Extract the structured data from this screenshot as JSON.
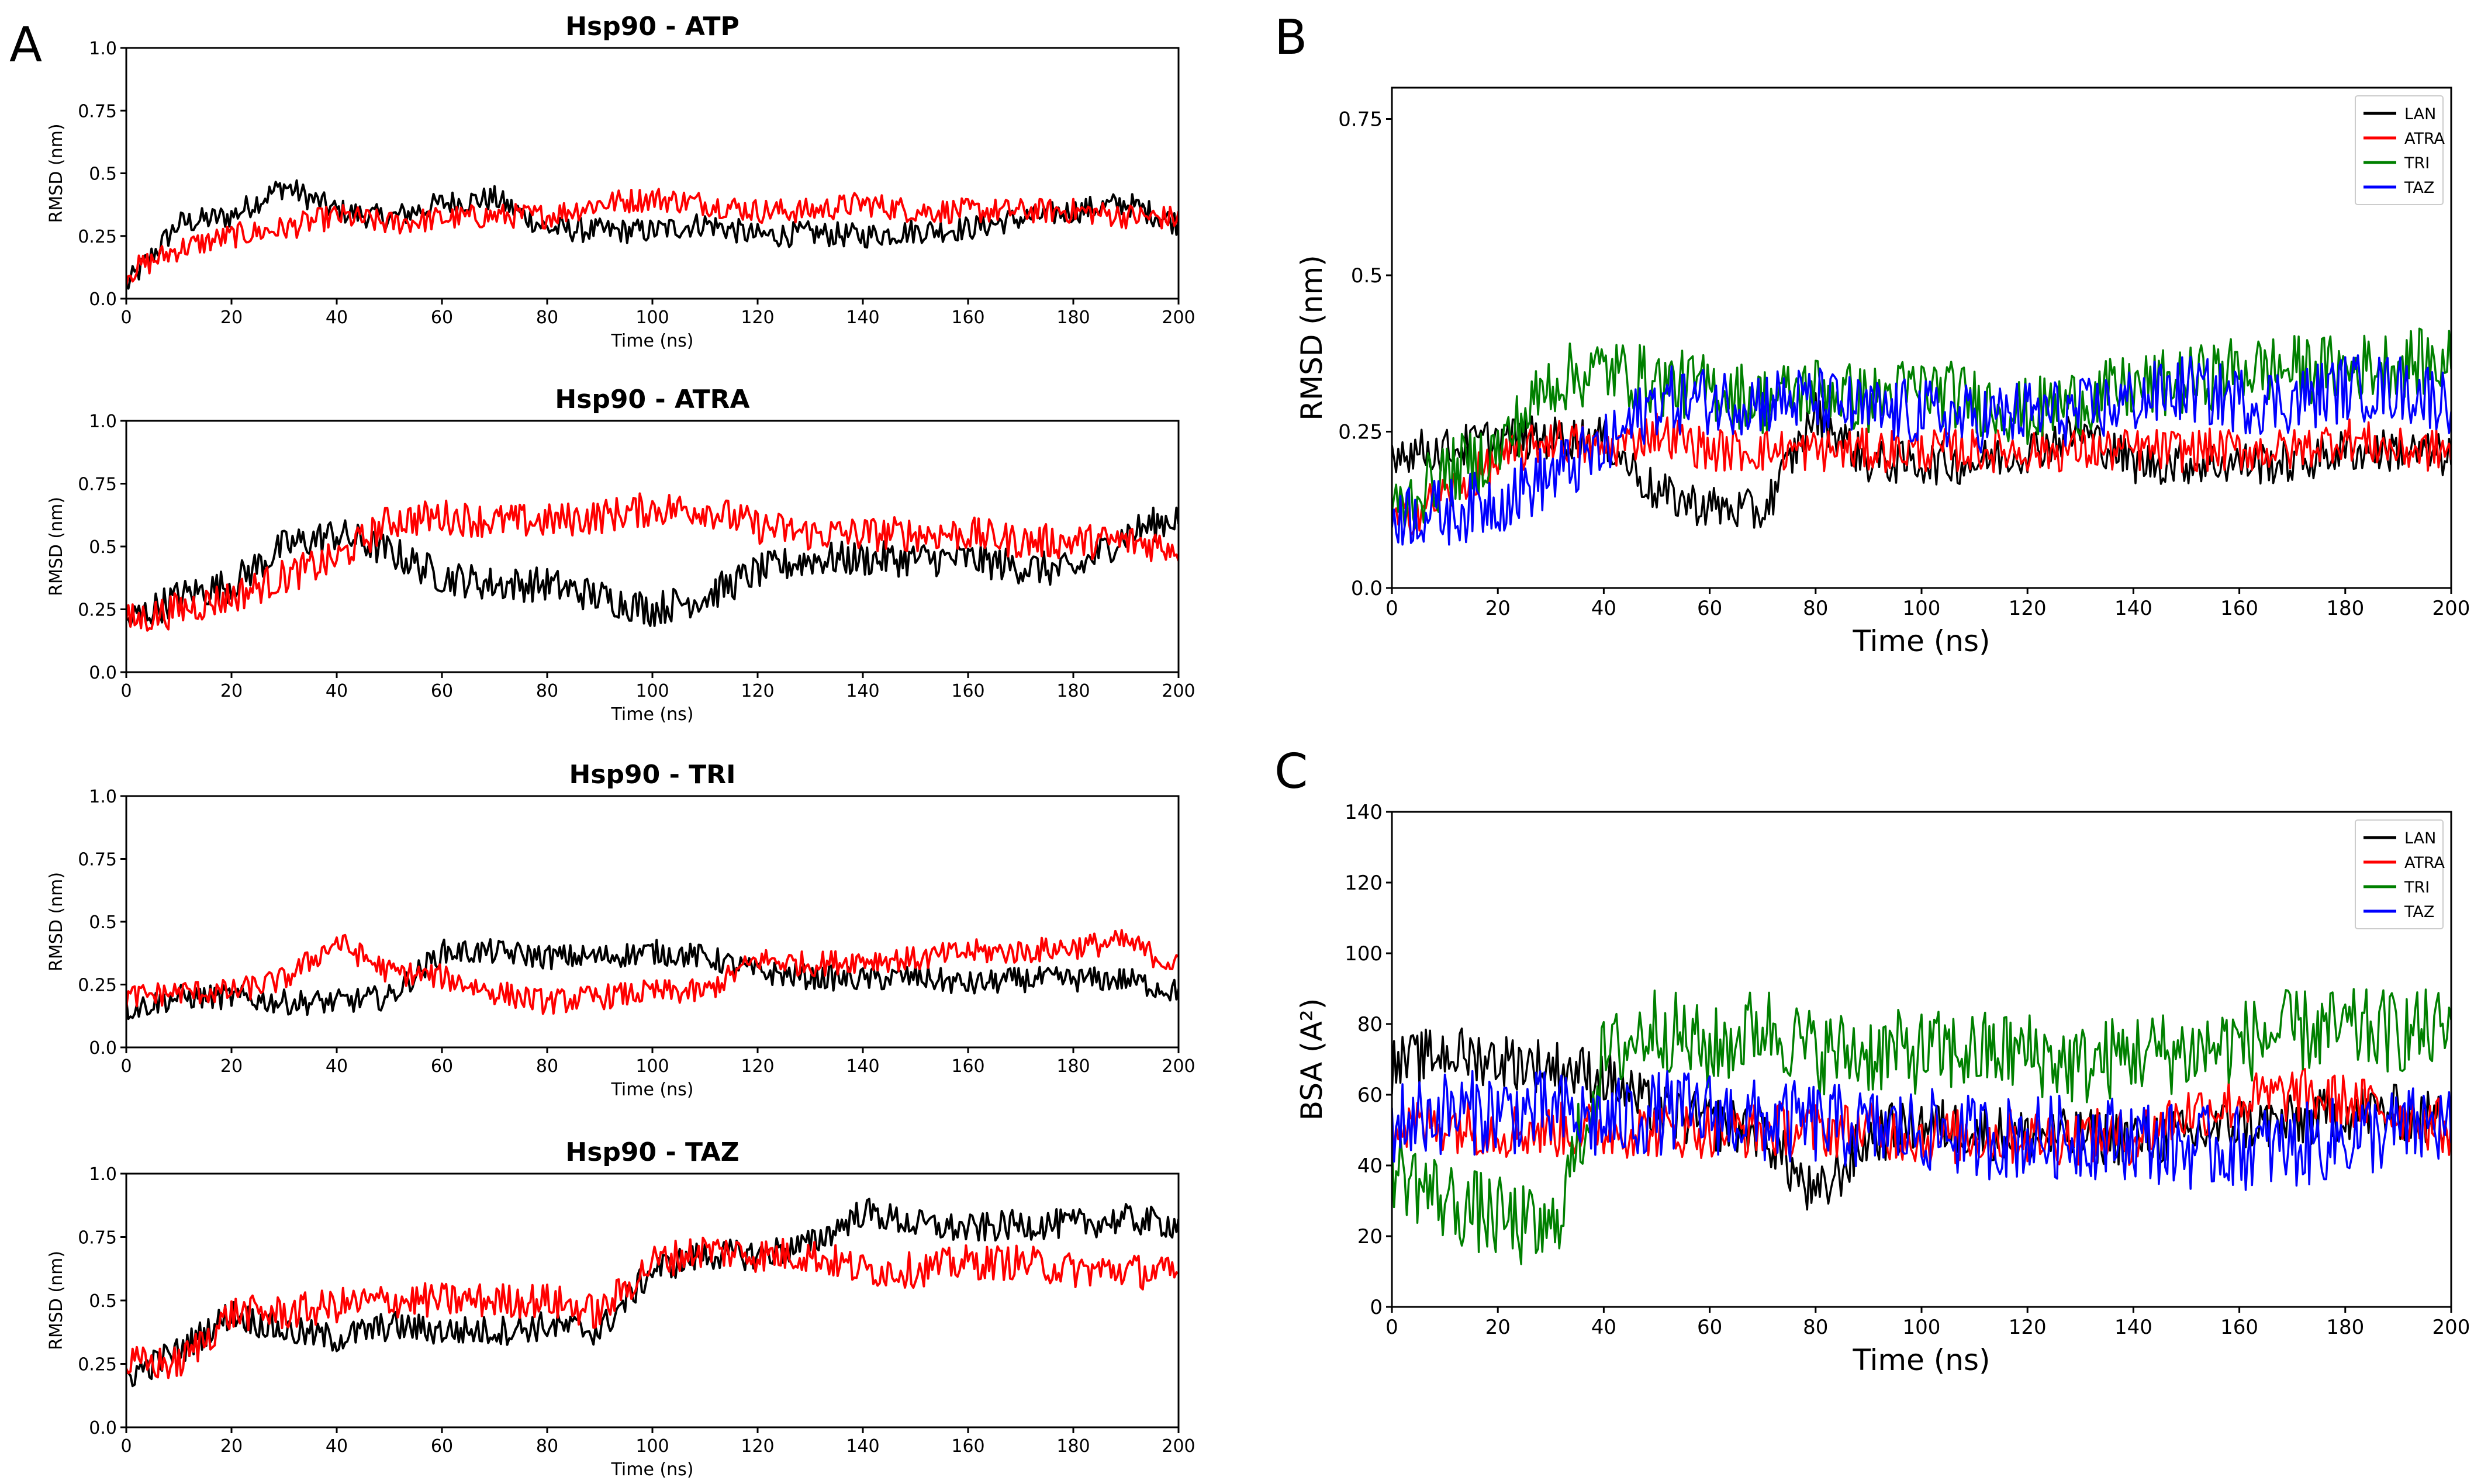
{
  "panels": [
    {
      "letter": "A",
      "title": "Hsp90 - ATP",
      "xlabel": "Time (ns)",
      "ylabel": "RMSD (nm)",
      "xticks": [
        "0",
        "20",
        "40",
        "60",
        "80",
        "100",
        "120",
        "140",
        "160",
        "180",
        "200"
      ],
      "yticks": [
        "0.0",
        "0.25",
        "0.5",
        "0.75",
        "1.0"
      ]
    },
    {
      "title": "Hsp90 - ATRA",
      "xlabel": "Time (ns)",
      "ylabel": "RMSD (nm)",
      "xticks": [
        "0",
        "20",
        "40",
        "60",
        "80",
        "100",
        "120",
        "140",
        "160",
        "180",
        "200"
      ],
      "yticks": [
        "0.0",
        "0.25",
        "0.5",
        "0.75",
        "1.0"
      ]
    },
    {
      "title": "Hsp90 - TRI",
      "xlabel": "Time (ns)",
      "ylabel": "RMSD (nm)",
      "xticks": [
        "0",
        "20",
        "40",
        "60",
        "80",
        "100",
        "120",
        "140",
        "160",
        "180",
        "200"
      ],
      "yticks": [
        "0.0",
        "0.25",
        "0.5",
        "0.75",
        "1.0"
      ]
    },
    {
      "title": "Hsp90 - TAZ",
      "xlabel": "Time (ns)",
      "ylabel": "RMSD (nm)",
      "xticks": [
        "0",
        "20",
        "40",
        "60",
        "80",
        "100",
        "120",
        "140",
        "160",
        "180",
        "200"
      ],
      "yticks": [
        "0.0",
        "0.25",
        "0.5",
        "0.75",
        "1.0"
      ]
    },
    {
      "letter": "B",
      "xlabel": "Time (ns)",
      "ylabel": "RMSD (nm)",
      "xticks": [
        "0",
        "20",
        "40",
        "60",
        "80",
        "100",
        "120",
        "140",
        "160",
        "180",
        "200"
      ],
      "yticks": [
        "0.0",
        "0.25",
        "0.5",
        "0.75"
      ],
      "legend": [
        "LAN",
        "ATRA",
        "TRI",
        "TAZ"
      ]
    },
    {
      "letter": "C",
      "xlabel": "Time (ns)",
      "ylabel": "BSA (A²)",
      "xticks": [
        "0",
        "20",
        "40",
        "60",
        "80",
        "100",
        "120",
        "140",
        "160",
        "180",
        "200"
      ],
      "yticks": [
        "0",
        "20",
        "40",
        "60",
        "80",
        "100",
        "120",
        "140"
      ],
      "legend": [
        "LAN",
        "ATRA",
        "TRI",
        "TAZ"
      ]
    }
  ],
  "colors": {
    "LAN": "#000000",
    "ATRA": "#ff0000",
    "TRI": "#008000",
    "TAZ": "#0000ff",
    "ref": "#000000",
    "ligand": "#ff0000"
  },
  "chart_data": [
    {
      "type": "line",
      "title": "Hsp90 - ATP",
      "xlabel": "Time (ns)",
      "ylabel": "RMSD (nm)",
      "xlim": [
        0,
        200
      ],
      "ylim": [
        0,
        1.0
      ],
      "x": [
        0,
        10,
        20,
        30,
        40,
        50,
        60,
        70,
        80,
        90,
        100,
        110,
        120,
        130,
        140,
        150,
        160,
        170,
        180,
        190,
        200
      ],
      "series": [
        {
          "color": "#000000",
          "values": [
            0.05,
            0.3,
            0.33,
            0.45,
            0.35,
            0.32,
            0.38,
            0.4,
            0.28,
            0.27,
            0.27,
            0.3,
            0.25,
            0.26,
            0.25,
            0.27,
            0.28,
            0.32,
            0.35,
            0.38,
            0.3
          ],
          "noise": 0.05
        },
        {
          "color": "#ff0000",
          "values": [
            0.1,
            0.2,
            0.25,
            0.28,
            0.33,
            0.3,
            0.32,
            0.33,
            0.33,
            0.38,
            0.4,
            0.38,
            0.35,
            0.35,
            0.38,
            0.35,
            0.35,
            0.35,
            0.35,
            0.33,
            0.32
          ],
          "noise": 0.05
        }
      ]
    },
    {
      "type": "line",
      "title": "Hsp90 - ATRA",
      "xlabel": "Time (ns)",
      "ylabel": "RMSD (nm)",
      "xlim": [
        0,
        200
      ],
      "ylim": [
        0,
        1.0
      ],
      "x": [
        0,
        10,
        20,
        30,
        40,
        50,
        60,
        70,
        80,
        90,
        100,
        110,
        120,
        130,
        140,
        150,
        160,
        170,
        180,
        190,
        200
      ],
      "series": [
        {
          "color": "#000000",
          "values": [
            0.2,
            0.3,
            0.35,
            0.5,
            0.55,
            0.48,
            0.38,
            0.35,
            0.35,
            0.3,
            0.25,
            0.3,
            0.4,
            0.45,
            0.45,
            0.45,
            0.45,
            0.42,
            0.4,
            0.55,
            0.62
          ],
          "noise": 0.07
        },
        {
          "color": "#ff0000",
          "values": [
            0.2,
            0.25,
            0.3,
            0.38,
            0.45,
            0.6,
            0.62,
            0.6,
            0.6,
            0.62,
            0.65,
            0.65,
            0.58,
            0.55,
            0.55,
            0.55,
            0.55,
            0.52,
            0.52,
            0.52,
            0.5
          ],
          "noise": 0.07
        }
      ]
    },
    {
      "type": "line",
      "title": "Hsp90 - TRI",
      "xlabel": "Time (ns)",
      "ylabel": "RMSD (nm)",
      "xlim": [
        0,
        200
      ],
      "ylim": [
        0,
        1.0
      ],
      "x": [
        0,
        10,
        20,
        30,
        40,
        50,
        60,
        70,
        80,
        90,
        100,
        110,
        120,
        130,
        140,
        150,
        160,
        170,
        180,
        190,
        200
      ],
      "series": [
        {
          "color": "#000000",
          "values": [
            0.15,
            0.2,
            0.2,
            0.18,
            0.18,
            0.2,
            0.38,
            0.38,
            0.36,
            0.36,
            0.38,
            0.36,
            0.3,
            0.28,
            0.27,
            0.28,
            0.25,
            0.27,
            0.27,
            0.27,
            0.22
          ],
          "noise": 0.05
        },
        {
          "color": "#ff0000",
          "values": [
            0.2,
            0.22,
            0.22,
            0.27,
            0.42,
            0.3,
            0.28,
            0.22,
            0.18,
            0.2,
            0.22,
            0.22,
            0.35,
            0.33,
            0.35,
            0.35,
            0.38,
            0.38,
            0.4,
            0.42,
            0.32
          ],
          "noise": 0.05
        }
      ]
    },
    {
      "type": "line",
      "title": "Hsp90 - TAZ",
      "xlabel": "Time (ns)",
      "ylabel": "RMSD (nm)",
      "xlim": [
        0,
        200
      ],
      "ylim": [
        0,
        1.0
      ],
      "x": [
        0,
        10,
        20,
        30,
        40,
        50,
        60,
        70,
        80,
        90,
        100,
        110,
        120,
        130,
        140,
        150,
        160,
        170,
        180,
        190,
        200
      ],
      "series": [
        {
          "color": "#000000",
          "values": [
            0.2,
            0.3,
            0.45,
            0.38,
            0.35,
            0.4,
            0.38,
            0.38,
            0.4,
            0.38,
            0.62,
            0.68,
            0.68,
            0.72,
            0.85,
            0.8,
            0.78,
            0.8,
            0.8,
            0.82,
            0.8
          ],
          "noise": 0.06
        },
        {
          "color": "#ff0000",
          "values": [
            0.25,
            0.25,
            0.45,
            0.45,
            0.48,
            0.5,
            0.5,
            0.5,
            0.5,
            0.45,
            0.65,
            0.7,
            0.68,
            0.68,
            0.62,
            0.62,
            0.65,
            0.65,
            0.62,
            0.62,
            0.6
          ],
          "noise": 0.07
        }
      ]
    },
    {
      "type": "line",
      "xlabel": "Time (ns)",
      "ylabel": "RMSD (nm)",
      "xlim": [
        0,
        200
      ],
      "ylim": [
        0,
        0.8
      ],
      "legend_position": "top-right",
      "x": [
        0,
        10,
        20,
        30,
        40,
        50,
        60,
        70,
        80,
        90,
        100,
        110,
        120,
        130,
        140,
        150,
        160,
        170,
        180,
        190,
        200
      ],
      "series": [
        {
          "name": "LAN",
          "color": "#000000",
          "values": [
            0.22,
            0.22,
            0.24,
            0.24,
            0.24,
            0.15,
            0.13,
            0.12,
            0.28,
            0.2,
            0.2,
            0.2,
            0.22,
            0.25,
            0.2,
            0.2,
            0.2,
            0.2,
            0.22,
            0.22,
            0.21
          ],
          "noise": 0.035
        },
        {
          "name": "ATRA",
          "color": "#ff0000",
          "values": [
            0.1,
            0.15,
            0.2,
            0.24,
            0.22,
            0.25,
            0.22,
            0.22,
            0.22,
            0.22,
            0.22,
            0.22,
            0.22,
            0.22,
            0.22,
            0.22,
            0.22,
            0.22,
            0.24,
            0.22,
            0.22
          ],
          "noise": 0.035
        },
        {
          "name": "TRI",
          "color": "#008000",
          "values": [
            0.12,
            0.18,
            0.22,
            0.33,
            0.35,
            0.33,
            0.32,
            0.3,
            0.32,
            0.3,
            0.32,
            0.3,
            0.28,
            0.3,
            0.32,
            0.33,
            0.35,
            0.35,
            0.35,
            0.36,
            0.36
          ],
          "noise": 0.055
        },
        {
          "name": "TAZ",
          "color": "#0000ff",
          "values": [
            0.12,
            0.12,
            0.14,
            0.18,
            0.22,
            0.3,
            0.3,
            0.3,
            0.3,
            0.28,
            0.28,
            0.27,
            0.28,
            0.28,
            0.3,
            0.32,
            0.3,
            0.3,
            0.32,
            0.32,
            0.3
          ],
          "noise": 0.055
        }
      ]
    },
    {
      "type": "line",
      "xlabel": "Time (ns)",
      "ylabel": "BSA (A²)",
      "xlim": [
        0,
        200
      ],
      "ylim": [
        0,
        140
      ],
      "legend_position": "top-right",
      "x": [
        0,
        10,
        20,
        30,
        40,
        50,
        60,
        70,
        80,
        90,
        100,
        110,
        120,
        130,
        140,
        150,
        160,
        170,
        180,
        190,
        200
      ],
      "series": [
        {
          "name": "LAN",
          "color": "#000000",
          "values": [
            68,
            72,
            70,
            68,
            65,
            55,
            52,
            50,
            30,
            48,
            52,
            50,
            48,
            48,
            48,
            48,
            52,
            52,
            55,
            55,
            52
          ],
          "noise": 8
        },
        {
          "name": "ATRA",
          "color": "#ff0000",
          "values": [
            50,
            52,
            50,
            50,
            50,
            50,
            50,
            50,
            50,
            50,
            48,
            48,
            48,
            48,
            48,
            55,
            58,
            60,
            58,
            55,
            50
          ],
          "noise": 8
        },
        {
          "name": "TRI",
          "color": "#008000",
          "values": [
            40,
            30,
            25,
            20,
            70,
            80,
            72,
            80,
            72,
            72,
            72,
            72,
            72,
            68,
            72,
            72,
            75,
            78,
            78,
            78,
            78
          ],
          "noise": 12
        },
        {
          "name": "TAZ",
          "color": "#0000ff",
          "values": [
            52,
            55,
            55,
            55,
            52,
            55,
            55,
            52,
            52,
            50,
            50,
            48,
            48,
            48,
            48,
            45,
            45,
            45,
            48,
            50,
            52
          ],
          "noise": 12
        }
      ]
    }
  ]
}
